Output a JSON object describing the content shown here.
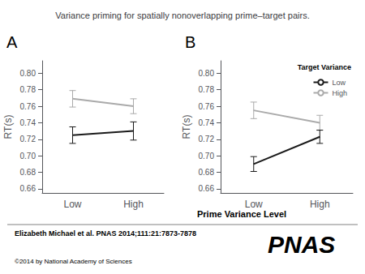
{
  "chart_data": [
    {
      "type": "line",
      "title": "Variance priming for spatially nonoverlapping prime–target pairs.",
      "xlabel": "Prime Variance Level",
      "ylabel": "RT(s)",
      "panel_label": "A",
      "categories": [
        "Low",
        "High"
      ],
      "series": [
        {
          "name": "Low",
          "color": "#1a1a1a",
          "values": [
            0.725,
            0.73
          ],
          "errors": [
            0.01,
            0.011
          ]
        },
        {
          "name": "High",
          "color": "#aaaaaa",
          "values": [
            0.769,
            0.76
          ],
          "errors": [
            0.01,
            0.009
          ]
        }
      ],
      "ylim": [
        0.655,
        0.815
      ],
      "yticks": [
        0.66,
        0.68,
        {
          "value": 0.7,
          "label": "0.70"
        },
        0.72,
        0.74,
        0.76,
        0.78,
        {
          "value": 0.8,
          "label": "0.80"
        }
      ],
      "grid": false,
      "annotations": [
        "Elizabeth Michael et al. PNAS 2014;111:21:7873-7878",
        "©2014 by National Academy of Sciences",
        "PNAS"
      ]
    },
    {
      "type": "line",
      "ylabel": "RT(s)",
      "panel_label": "B",
      "categories": [
        "Low",
        "High"
      ],
      "series": [
        {
          "name": "Low",
          "color": "#1a1a1a",
          "values": [
            0.69,
            0.723
          ],
          "errors": [
            0.009,
            0.008
          ]
        },
        {
          "name": "High",
          "color": "#aaaaaa",
          "values": [
            0.755,
            0.74
          ],
          "errors": [
            0.01,
            0.009
          ]
        }
      ],
      "ylim": [
        0.655,
        0.815
      ],
      "yticks": [
        0.66,
        0.68,
        {
          "value": 0.7,
          "label": "0.70"
        },
        0.72,
        0.74,
        0.76,
        0.78,
        {
          "value": 0.8,
          "label": "0.80"
        }
      ],
      "grid": false,
      "legend": "upper right",
      "legend_title": "Target Variance"
    }
  ]
}
